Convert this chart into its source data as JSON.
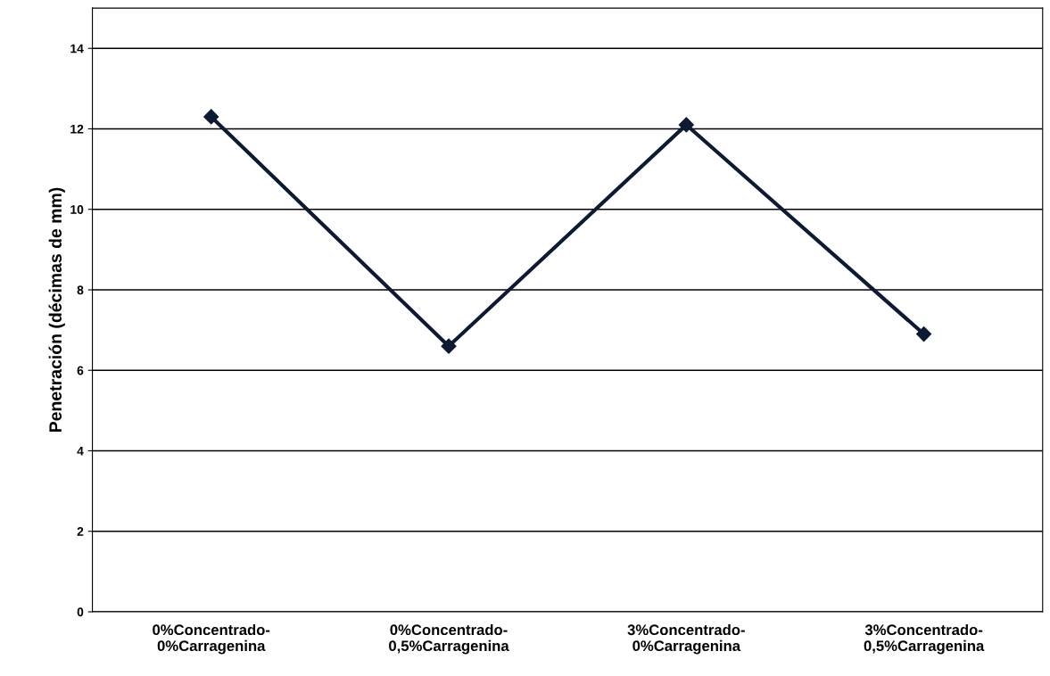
{
  "chart_data": {
    "type": "line",
    "ylabel": "Penetración (décimas de mm)",
    "categories": [
      "0%Concentrado-\n0%Carragenina",
      "0%Concentrado-\n0,5%Carragenina",
      "3%Concentrado-\n0%Carragenina",
      "3%Concentrado-\n0,5%Carragenina"
    ],
    "series": [
      {
        "color": "#0d1a33",
        "values": [
          12.3,
          6.6,
          12.1,
          6.9
        ]
      }
    ],
    "ylim": [
      0,
      15
    ],
    "yticks": [
      0,
      2,
      4,
      6,
      8,
      10,
      12,
      14
    ],
    "grid": "y",
    "marker": "diamond",
    "line_style": "solid",
    "legend": false
  }
}
